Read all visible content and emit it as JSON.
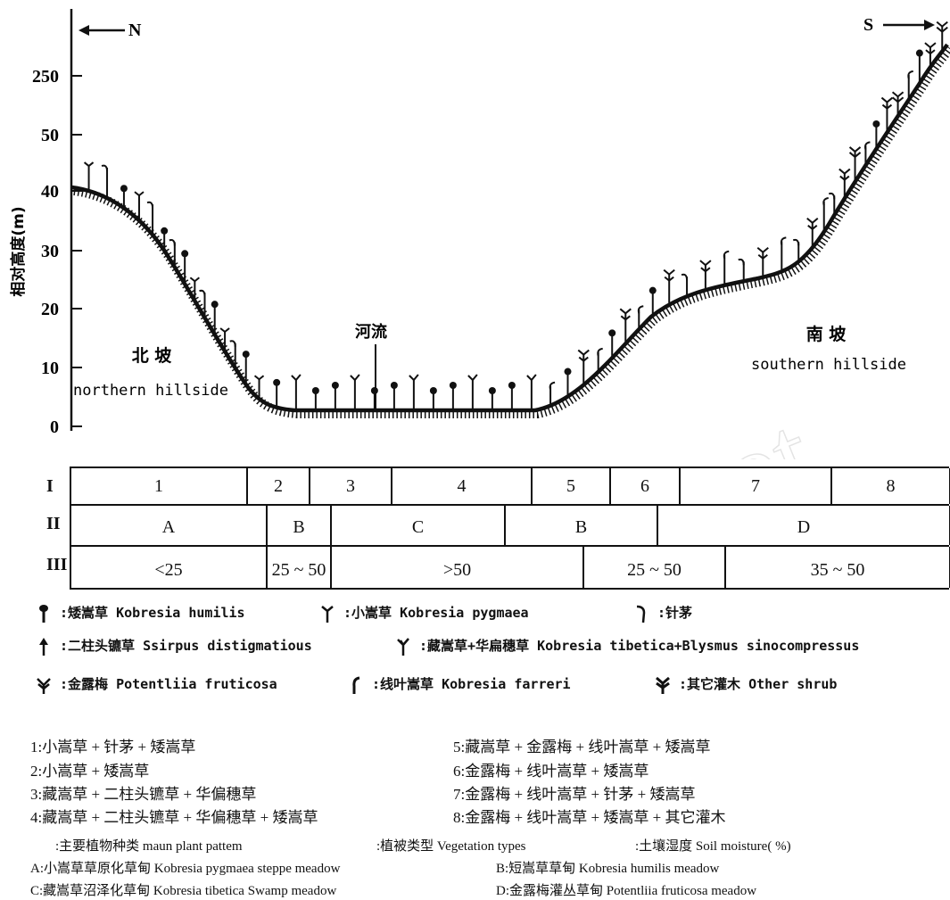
{
  "profile": {
    "north_arrow": "N",
    "south_arrow": "S",
    "y_axis_label": "相对高度(m)",
    "y_ticks": [
      "0",
      "10",
      "20",
      "30",
      "40",
      "50",
      "250"
    ],
    "river_label": "河流",
    "north_slope_cn": "北 坡",
    "north_slope_en": "northern hillside",
    "south_slope_cn": "南 坡",
    "south_slope_en": "southern hillside"
  },
  "table": {
    "row_labels": [
      "I",
      "II",
      "III"
    ],
    "row1": [
      "1",
      "2",
      "3",
      "4",
      "5",
      "6",
      "7",
      "8"
    ],
    "row2": [
      "A",
      "B",
      "C",
      "B",
      "D"
    ],
    "row3": [
      "<25",
      "25 ~ 50",
      ">50",
      "25 ~ 50",
      "35 ~ 50"
    ]
  },
  "legend": [
    {
      "icon": "kobresia-humilis-icon",
      "text": ":矮嵩草 Kobresia humilis"
    },
    {
      "icon": "kobresia-pygmaea-icon",
      "text": ":小嵩草 Kobresia pygmaea"
    },
    {
      "icon": "stipa-icon",
      "text": ":针茅"
    },
    {
      "icon": "scirpus-icon",
      "text": ":二柱头镳草 Ssirpus distigmatious"
    },
    {
      "icon": "kobresia-tibetica-icon",
      "text": ":藏嵩草+华扁穗草 Kobresia tibetica+Blysmus sinocompressus"
    },
    {
      "icon": "potentilla-icon",
      "text": ":金露梅 Potentliia fruticosa"
    },
    {
      "icon": "kobresia-farreri-icon",
      "text": ":线叶嵩草 Kobresia farreri"
    },
    {
      "icon": "other-shrub-icon",
      "text": ":其它灌木 Other shrub"
    }
  ],
  "combinations": [
    "1:小嵩草 + 针茅 + 矮嵩草",
    "2:小嵩草 + 矮嵩草",
    "3:藏嵩草 + 二柱头镳草 + 华偏穗草",
    "4:藏嵩草 + 二柱头镳草 + 华偏穗草 + 矮嵩草",
    "5:藏嵩草 + 金露梅 + 线叶嵩草 + 矮嵩草",
    "6:金露梅 + 线叶嵩草 + 矮嵩草",
    "7:金露梅 + 线叶嵩草 + 针茅 + 矮嵩草",
    "8:金露梅 + 线叶嵩草 + 矮嵩草 + 其它灌木"
  ],
  "notes": {
    "row_meanings": [
      ":主要植物种类 maun plant pattem",
      ":植被类型 Vegetation types",
      ":土壤湿度 Soil moisture( %)"
    ],
    "types": [
      "A:小嵩草草原化草甸 Kobresia pygmaea steppe meadow",
      "B:短嵩草草甸 Kobresia humilis meadow",
      "C:藏嵩草沼泽化草甸 Kobresia tibetica Swamp meadow",
      "D:金露梅灌丛草甸 Potentliia fruticosa meadow"
    ]
  },
  "watermark": "www.cnki.net"
}
